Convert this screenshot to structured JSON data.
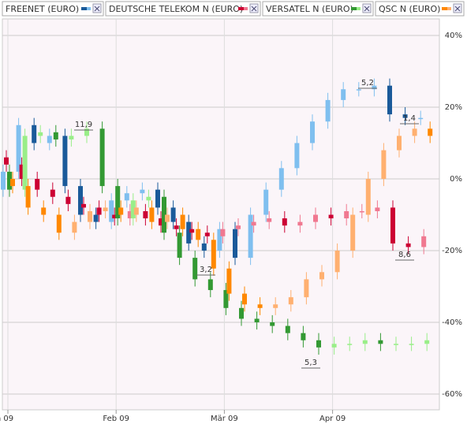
{
  "chart_data": {
    "type": "candlestick",
    "categories": [
      "n 09",
      null,
      null,
      null,
      null,
      null,
      null,
      "Feb 09",
      null,
      null,
      null,
      null,
      null,
      null,
      "Mär 09",
      null,
      null,
      null,
      null,
      null,
      null,
      "Apr 09",
      null,
      null,
      null,
      null,
      null,
      null
    ],
    "series": [
      {
        "name": "FREENET (EURO)",
        "color": "#1a5a9a",
        "up_color": "#7fbfef",
        "open": [
          -3,
          2,
          15,
          10,
          12,
          -2,
          -10,
          -12,
          -6,
          -4,
          -3,
          -8,
          -12,
          -18,
          -20,
          -14,
          -22,
          -10,
          -3,
          3,
          10,
          16,
          22,
          25,
          25,
          26,
          18,
          17
        ],
        "high": [
          4,
          17,
          17,
          14,
          14,
          0,
          -8,
          -4,
          -2,
          -1,
          -1,
          -6,
          -10,
          -16,
          -12,
          -12,
          -8,
          -1,
          5,
          12,
          18,
          24,
          27,
          27,
          28,
          28,
          20,
          19
        ],
        "low": [
          -5,
          0,
          8,
          8,
          -4,
          -12,
          -14,
          -14,
          -8,
          -6,
          -10,
          -14,
          -20,
          -22,
          -22,
          -24,
          -24,
          -12,
          -5,
          1,
          8,
          14,
          20,
          23,
          23,
          16,
          15,
          15
        ],
        "close": [
          2,
          15,
          10,
          12,
          -2,
          -10,
          -12,
          -6,
          -4,
          -3,
          -8,
          -12,
          -18,
          -20,
          -14,
          -22,
          -10,
          -3,
          3,
          10,
          16,
          22,
          25,
          25,
          26,
          18,
          17,
          17
        ]
      },
      {
        "name": "DEUTSCHE TELEKOM N (EURO)",
        "color": "#cc0033",
        "up_color": "#f07890",
        "open": [
          6,
          4,
          0,
          -3,
          -5,
          -7,
          -8,
          -10,
          -11,
          -9,
          -11,
          -13,
          -14,
          -15,
          -16,
          -14,
          -13,
          -12,
          -11,
          -13,
          -12,
          -10,
          -11,
          -9,
          -9,
          -8,
          -18,
          -19
        ],
        "high": [
          8,
          6,
          2,
          -1,
          -3,
          -5,
          -6,
          -8,
          -7,
          -7,
          -9,
          -11,
          -12,
          -13,
          -12,
          -11,
          -10,
          -9,
          -9,
          -10,
          -8,
          -8,
          -7,
          -7,
          -6,
          -6,
          -16,
          -14
        ],
        "low": [
          2,
          -2,
          -5,
          -7,
          -9,
          -10,
          -12,
          -13,
          -13,
          -13,
          -15,
          -16,
          -17,
          -18,
          -18,
          -16,
          -15,
          -14,
          -15,
          -15,
          -14,
          -13,
          -13,
          -11,
          -11,
          -20,
          -21,
          -21
        ],
        "close": [
          4,
          0,
          -3,
          -5,
          -7,
          -8,
          -10,
          -11,
          -9,
          -11,
          -13,
          -14,
          -15,
          -16,
          -14,
          -13,
          -12,
          -11,
          -13,
          -12,
          -10,
          -11,
          -9,
          -9,
          -8,
          -18,
          -19,
          -16
        ]
      },
      {
        "name": "VERSATEL N (EURO)",
        "color": "#339933",
        "up_color": "#99ee88",
        "open": [
          2,
          -3,
          12,
          13,
          11,
          12,
          14,
          -2,
          -11,
          -6,
          -5,
          -15,
          -22,
          -28,
          -31,
          -36,
          -39,
          -40,
          -41,
          -43,
          -45,
          -47,
          -46,
          -46,
          -45,
          -46,
          -46,
          -46
        ],
        "high": [
          4,
          14,
          15,
          15,
          14,
          16,
          16,
          0,
          -4,
          -3,
          -3,
          -13,
          -20,
          -26,
          -29,
          -34,
          -37,
          -38,
          -39,
          -41,
          -43,
          -44,
          -44,
          -43,
          -43,
          -44,
          -44,
          -43
        ],
        "low": [
          -5,
          -5,
          10,
          9,
          9,
          10,
          -4,
          -13,
          -13,
          -8,
          -17,
          -24,
          -30,
          -33,
          -38,
          -41,
          -42,
          -43,
          -45,
          -47,
          -49,
          -49,
          -48,
          -48,
          -48,
          -48,
          -48,
          -48
        ],
        "close": [
          -3,
          12,
          13,
          11,
          12,
          14,
          -2,
          -11,
          -6,
          -5,
          -15,
          -22,
          -28,
          -31,
          -36,
          -39,
          -40,
          -41,
          -43,
          -45,
          -47,
          -46,
          -46,
          -45,
          -46,
          -46,
          -46,
          -45
        ]
      },
      {
        "name": "QSC N (EURO)",
        "color": "#ff8800",
        "up_color": "#ffb070",
        "open": [
          0,
          -2,
          -8,
          -10,
          -15,
          -12,
          -9,
          -8,
          -10,
          -8,
          -12,
          -10,
          -14,
          -17,
          -25,
          -32,
          -35,
          -36,
          -35,
          -33,
          -28,
          -26,
          -20,
          -10,
          0,
          8,
          12,
          14
        ],
        "high": [
          2,
          0,
          -6,
          -8,
          -10,
          -7,
          -6,
          -6,
          -6,
          -6,
          -8,
          -8,
          -12,
          -15,
          -23,
          -30,
          -33,
          -33,
          -31,
          -26,
          -24,
          -18,
          -8,
          2,
          10,
          14,
          16,
          16
        ],
        "low": [
          -4,
          -10,
          -12,
          -17,
          -17,
          -14,
          -11,
          -12,
          -12,
          -14,
          -14,
          -16,
          -19,
          -27,
          -34,
          -37,
          -38,
          -38,
          -37,
          -35,
          -30,
          -28,
          -22,
          -12,
          -2,
          6,
          10,
          10
        ],
        "close": [
          -2,
          -8,
          -10,
          -15,
          -12,
          -9,
          -8,
          -10,
          -8,
          -12,
          -10,
          -14,
          -17,
          -25,
          -32,
          -35,
          -36,
          -35,
          -33,
          -28,
          -26,
          -20,
          -10,
          0,
          8,
          12,
          14,
          12
        ]
      }
    ],
    "ylim": [
      -60,
      40
    ],
    "yticks": [
      {
        "value": 40,
        "label": "40%"
      },
      {
        "value": 20,
        "label": "20%"
      },
      {
        "value": 0,
        "label": "0%"
      },
      {
        "value": -20,
        "label": "-20%"
      },
      {
        "value": -40,
        "label": "-40%"
      },
      {
        "value": -60,
        "label": "-60%"
      }
    ],
    "grid": true,
    "annotations": [
      "11,9",
      "3,2",
      "5,2",
      "1,4",
      "8,6",
      "5,3"
    ]
  }
}
